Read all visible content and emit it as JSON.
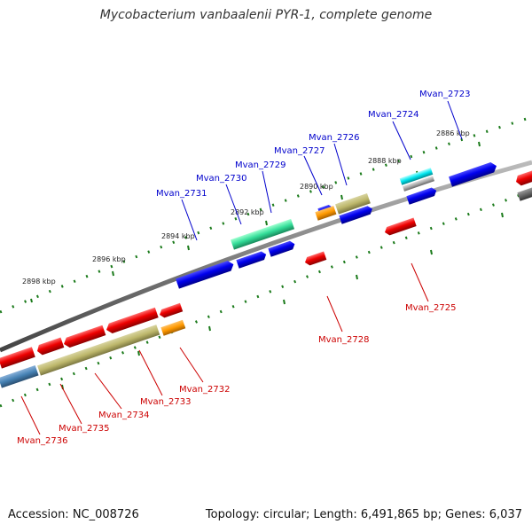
{
  "title": "Mycobacterium vanbaalenii PYR-1, complete genome",
  "footer": {
    "accession": "Accession: NC_008726",
    "summary": "Topology: circular; Length: 6,491,865 bp; Genes: 6,037"
  },
  "colors": {
    "backbone": "#808080",
    "tick": "#1a7a1a",
    "forward_label": "#0000cc",
    "reverse_label": "#cc0000",
    "tick_label": "#222222"
  },
  "scale_labels": [
    "2886 kbp",
    "2888 kbp",
    "2890 kbp",
    "2892 kbp",
    "2894 kbp",
    "2896 kbp",
    "2898 kbp"
  ],
  "gene_labels": [
    "Mvan_2723",
    "Mvan_2724",
    "Mvan_2725",
    "Mvan_2726",
    "Mvan_2727",
    "Mvan_2728",
    "Mvan_2729",
    "Mvan_2730",
    "Mvan_2731",
    "Mvan_2732",
    "Mvan_2733",
    "Mvan_2734",
    "Mvan_2735",
    "Mvan_2736"
  ]
}
